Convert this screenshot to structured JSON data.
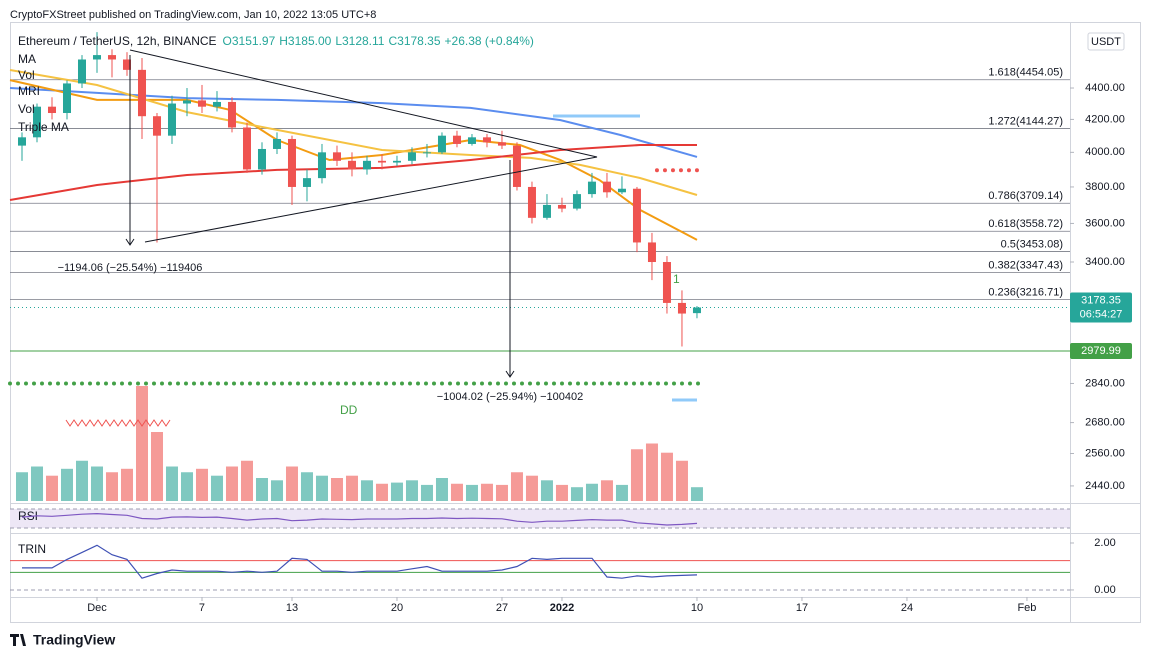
{
  "chart_data": {
    "type": "candlestick",
    "header": "CryptoFXStreet published on TradingView.com, Jan 10, 2022 13:05 UTC+8",
    "title": "Ethereum / TetherUS, 12h, BINANCE",
    "ohlc_legend": {
      "open": "O3151.97",
      "high": "H3185.00",
      "low": "L3128.11",
      "close": "C3178.35",
      "change": "+26.38 (+0.84%)"
    },
    "indicators": [
      "MA",
      "Vol",
      "MRI",
      "Vol",
      "Triple MA"
    ],
    "currency": "USDT",
    "countdown": "06:54:27",
    "brand": "TradingView",
    "annotations": [
      "−1194.06 (−25.54%) −119406",
      "−1004.02 (−25.94%) −100402",
      "DD",
      "1"
    ],
    "log_scale": true,
    "up_color": "#26a69a",
    "down_color": "#ef5350",
    "volume_colors": [
      "#7fc8c0",
      "#f59a97"
    ],
    "x": [
      -5,
      -4,
      -3,
      -2,
      -1,
      0,
      1,
      2,
      3,
      4,
      5,
      6,
      7,
      8,
      9,
      10,
      11,
      12,
      13,
      14,
      15,
      16,
      17,
      18,
      19,
      20,
      21,
      22,
      23,
      24,
      25,
      26,
      27,
      28,
      29,
      30,
      31,
      32,
      33,
      34,
      35,
      36,
      37,
      38,
      39,
      40
    ],
    "open": [
      4040,
      4090,
      4280,
      4240,
      4430,
      4590,
      4620,
      4590,
      4520,
      4220,
      4100,
      4300,
      4320,
      4280,
      4310,
      4150,
      3900,
      4020,
      4080,
      3800,
      3850,
      4000,
      3950,
      3900,
      3950,
      3940,
      3950,
      4000,
      4000,
      4100,
      4050,
      4090,
      4060,
      4040,
      3800,
      3630,
      3700,
      3680,
      3760,
      3830,
      3770,
      3790,
      3500,
      3400,
      3200,
      3151.97
    ],
    "high": [
      4120,
      4300,
      4340,
      4450,
      4620,
      4780,
      4660,
      4640,
      4600,
      4240,
      4350,
      4400,
      4420,
      4380,
      4340,
      4180,
      4060,
      4120,
      4100,
      3900,
      4050,
      4040,
      4000,
      3980,
      3990,
      3980,
      4030,
      4050,
      4120,
      4130,
      4110,
      4110,
      4130,
      4060,
      3830,
      3760,
      3740,
      3780,
      3880,
      3880,
      3860,
      3800,
      3550,
      3430,
      3260,
      3185.0
    ],
    "low": [
      3950,
      4060,
      4200,
      4200,
      4400,
      4500,
      4470,
      4480,
      4080,
      3500,
      4050,
      4220,
      4240,
      4250,
      4120,
      3880,
      3870,
      3990,
      3700,
      3720,
      3820,
      3920,
      3860,
      3870,
      3900,
      3920,
      3930,
      3970,
      3990,
      4030,
      4040,
      4030,
      4020,
      3780,
      3600,
      3620,
      3660,
      3670,
      3740,
      3740,
      3760,
      3450,
      3310,
      3150,
      3000,
      3128.11
    ],
    "close": [
      4090,
      4280,
      4240,
      4430,
      4590,
      4620,
      4590,
      4520,
      4220,
      4100,
      4300,
      4320,
      4280,
      4310,
      4150,
      3900,
      4020,
      4080,
      3800,
      3850,
      4000,
      3950,
      3900,
      3950,
      3940,
      3950,
      4000,
      4000,
      4100,
      4050,
      4090,
      4060,
      4040,
      3800,
      3630,
      3700,
      3680,
      3760,
      3830,
      3770,
      3790,
      3500,
      3400,
      3200,
      3150,
      3178.35
    ],
    "volume": [
      25,
      30,
      22,
      28,
      35,
      30,
      25,
      28,
      100,
      60,
      30,
      25,
      28,
      22,
      30,
      35,
      20,
      18,
      30,
      25,
      22,
      20,
      22,
      18,
      15,
      16,
      18,
      14,
      20,
      15,
      14,
      15,
      14,
      25,
      22,
      18,
      14,
      12,
      15,
      18,
      14,
      45,
      50,
      42,
      35,
      12
    ],
    "moving_averages": [
      {
        "color": "#5b8def",
        "x": [
          -5.8,
          0,
          6,
          12,
          19,
          24.9,
          30.9,
          34.9,
          40
        ],
        "values": [
          4400,
          4368,
          4335,
          4323,
          4303,
          4272,
          4196,
          4104,
          3973
        ]
      },
      {
        "color": "#f39c12",
        "x": [
          -5.8,
          0,
          6,
          8.9,
          12,
          15.5,
          19,
          24.9,
          28.2,
          30.9,
          33.5,
          36.2,
          40
        ],
        "values": [
          4452,
          4323,
          4323,
          4259,
          4074,
          3955,
          3984,
          4074,
          4044,
          3955,
          3839,
          3673,
          3513
        ]
      },
      {
        "color": "#f5c242",
        "x": [
          -5.8,
          0,
          6,
          12,
          19,
          24.9,
          28.9,
          32.2,
          36.2,
          40
        ],
        "values": [
          4519,
          4420,
          4246,
          4135,
          4014,
          3984,
          3967,
          3926,
          3851,
          3755
        ]
      },
      {
        "color": "#e53935",
        "x": [
          -5.8,
          0,
          6,
          12,
          19,
          24.9,
          30.9,
          36.2,
          40
        ],
        "values": [
          3727,
          3811,
          3868,
          3897,
          3909,
          3955,
          4014,
          4044,
          4044
        ]
      }
    ],
    "fib_levels": [
      {
        "value": 4454.05,
        "label": "1.618(4454.05)"
      },
      {
        "value": 4144.27,
        "label": "1.272(4144.27)"
      },
      {
        "value": 3709.14,
        "label": "0.786(3709.14)"
      },
      {
        "value": 3558.72,
        "label": "0.618(3558.72)"
      },
      {
        "value": 3453.08,
        "label": "0.5(3453.08)"
      },
      {
        "value": 3347.43,
        "label": "0.382(3347.43)"
      },
      {
        "value": 3216.71,
        "label": "0.236(3216.71)"
      }
    ],
    "hlines": [
      {
        "value": 2979.99,
        "color": "#43a047",
        "style": "solid"
      },
      {
        "value": 2840,
        "color": "#43a047",
        "style": "dots"
      },
      {
        "value": 3895,
        "color": "#ef5350",
        "style": "dots"
      }
    ],
    "xlim": [
      -5.8,
      64.87
    ],
    "xticks": [
      {
        "value": 0,
        "label": "Dec"
      },
      7,
      13,
      20,
      27,
      {
        "value": 31,
        "label": "2022"
      },
      {
        "value": 40,
        "label": "10"
      },
      {
        "value": 47,
        "label": "17"
      },
      {
        "value": 54,
        "label": "24"
      },
      {
        "value": 62,
        "label": "Feb"
      }
    ],
    "ylim": [
      2379,
      4795
    ],
    "yticks": [
      {
        "value": 4400,
        "label": "4400.00"
      },
      {
        "value": 4200,
        "label": "4200.00"
      },
      {
        "value": 4000,
        "label": "4000.00"
      },
      {
        "value": 3800,
        "label": "3800.00"
      },
      {
        "value": 3600,
        "label": "3600.00"
      },
      {
        "value": 3400,
        "label": "3400.00"
      },
      {
        "value": 2840,
        "label": "2840.00"
      },
      {
        "value": 2680,
        "label": "2680.00"
      },
      {
        "value": 2560,
        "label": "2560.00"
      },
      {
        "value": 2440,
        "label": "2440.00"
      }
    ],
    "rsi": {
      "label": "RSI",
      "color": "#7e57c2",
      "values": [
        55,
        60,
        58,
        62,
        66,
        68,
        65,
        62,
        50,
        48,
        55,
        56,
        54,
        55,
        50,
        44,
        48,
        50,
        42,
        44,
        48,
        47,
        46,
        48,
        48,
        48,
        50,
        50,
        52,
        50,
        51,
        50,
        49,
        40,
        36,
        40,
        40,
        43,
        46,
        44,
        44,
        34,
        30,
        26,
        28,
        32
      ]
    },
    "trin": {
      "label": "TRIN",
      "color": "#3f51b5",
      "ylim": [
        -0.3,
        2.34
      ],
      "yticks": [
        {
          "value": 2,
          "label": "2.00"
        },
        {
          "value": 0,
          "label": "0.00"
        }
      ],
      "levels": [
        {
          "value": 1.25,
          "color": "#ef5350"
        },
        {
          "value": 0.75,
          "color": "#43a047"
        }
      ],
      "values": [
        0.94,
        0.94,
        0.94,
        1.3,
        1.6,
        1.9,
        1.5,
        1.3,
        0.5,
        0.7,
        0.85,
        0.8,
        0.8,
        0.8,
        0.75,
        0.8,
        0.75,
        0.8,
        1.35,
        1.3,
        0.8,
        0.8,
        0.75,
        0.8,
        0.8,
        0.8,
        0.9,
        1.0,
        0.8,
        0.8,
        0.8,
        0.8,
        0.85,
        1.0,
        1.35,
        1.3,
        1.35,
        1.35,
        1.35,
        0.55,
        0.5,
        0.6,
        0.55,
        0.6,
        0.62,
        0.64
      ]
    }
  }
}
